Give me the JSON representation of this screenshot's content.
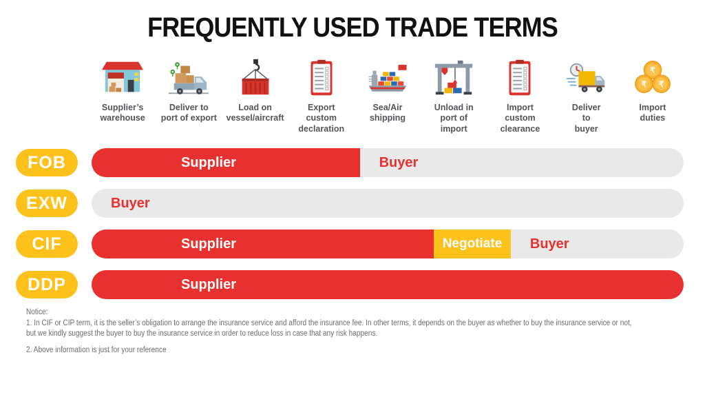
{
  "title": "FREQUENTLY USED TRADE TERMS",
  "colors": {
    "red": "#E8302E",
    "yellow": "#FCC21B",
    "gray_bar": "#E9E9EA",
    "stage_label_text": "#55565A",
    "notice_text": "#6D6E71",
    "title_text": "#111111"
  },
  "stages": [
    {
      "icon": "warehouse-icon",
      "label": "Supplier’s\nwarehouse"
    },
    {
      "icon": "export-truck-icon",
      "label": "Deliver to\nport of export"
    },
    {
      "icon": "container-hook-icon",
      "label": "Load on\nvessel/aircraft"
    },
    {
      "icon": "export-declaration-clipboard-icon",
      "label": "Export\ncustom\ndeclaration"
    },
    {
      "icon": "cargo-ship-icon",
      "label": "Sea/Air\nshipping"
    },
    {
      "icon": "gantry-crane-icon",
      "label": "Unload in\nport of\nimport"
    },
    {
      "icon": "import-clearance-clipboard-icon",
      "label": "Import\ncustom\nclearance"
    },
    {
      "icon": "delivery-truck-icon",
      "label": "Deliver\nto\nbuyer"
    },
    {
      "icon": "import-duties-coins-icon",
      "label": "Import\nduties"
    }
  ],
  "rows": [
    {
      "term": "FOB",
      "segments": [
        {
          "party": "Supplier",
          "role": "supplier",
          "width_pct": 45.3
        },
        {
          "party": "Buyer",
          "role": "buyer",
          "width_pct": 54.7
        }
      ]
    },
    {
      "term": "EXW",
      "segments": [
        {
          "party": "Buyer",
          "role": "buyer",
          "width_pct": 100
        }
      ]
    },
    {
      "term": "CIF",
      "segments": [
        {
          "party": "Supplier",
          "role": "supplier",
          "width_pct": 57.8
        },
        {
          "party": "Negotiate",
          "role": "negotiate",
          "width_pct": 13.0
        },
        {
          "party": "Buyer",
          "role": "buyer",
          "width_pct": 29.2
        }
      ]
    },
    {
      "term": "DDP",
      "segments": [
        {
          "party": "Supplier",
          "role": "supplier",
          "width_pct": 100
        }
      ]
    }
  ],
  "notice": {
    "heading": "Notice:",
    "lines": [
      "1. In CIF or CIP term, it is the seller’s obligation to arrange the insurance service and afford the insurance fee. In other terms, it depends on the buyer as whether to buy the insurance service or not,",
      "but we kindly suggest the buyer to buy the insurance service in order to reduce loss in case that any risk happens.",
      "2. Above information is just for your reference"
    ]
  }
}
